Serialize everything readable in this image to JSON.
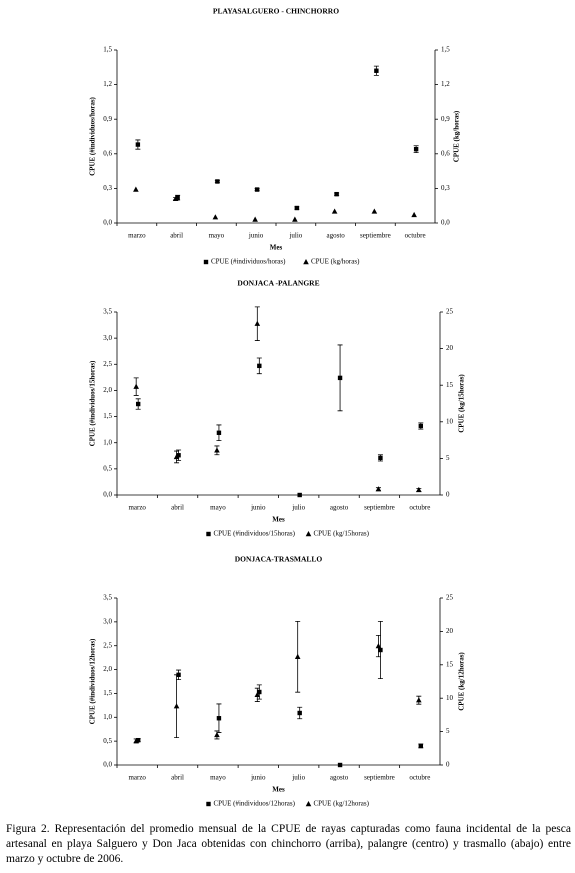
{
  "chart_data": [
    {
      "type": "scatter",
      "title": "PLAYASALGUERO - CHINCHORRO",
      "x_label": "Mes",
      "y_label": "CPUE (#individuos/horas)",
      "y2_label": "CPUE (kg/horas)",
      "categories": [
        "marzo",
        "abril",
        "mayo",
        "junio",
        "julio",
        "agosto",
        "septiembre",
        "octubre"
      ],
      "ylim": [
        0,
        1.5
      ],
      "yticks": [
        {
          "value": 0,
          "label": "0,0"
        },
        {
          "value": 0.3,
          "label": "0,3"
        },
        {
          "value": 0.6,
          "label": "0,6"
        },
        {
          "value": 0.9,
          "label": "0,9"
        },
        {
          "value": 1.2,
          "label": "1,2"
        },
        {
          "value": 1.5,
          "label": "1,5"
        }
      ],
      "y2lim": [
        0,
        1.5
      ],
      "y2ticks": [
        {
          "value": 0,
          "label": "0,0"
        },
        {
          "value": 0.3,
          "label": "0,3"
        },
        {
          "value": 0.6,
          "label": "0,6"
        },
        {
          "value": 0.9,
          "label": "0,9"
        },
        {
          "value": 1.2,
          "label": "1,2"
        },
        {
          "value": 1.5,
          "label": "1,5"
        }
      ],
      "series": [
        {
          "name": "CPUE (#individuos/horas)",
          "color": "#000000",
          "marker": "square",
          "values": [
            0.68,
            0.22,
            0.36,
            0.29,
            0.13,
            0.25,
            1.32,
            0.64
          ],
          "errors": [
            0.04,
            0.02,
            0.01,
            0.01,
            0.01,
            0.01,
            0.04,
            0.03
          ]
        },
        {
          "name": "CPUE (kg/horas)",
          "color": "#000000",
          "marker": "triangle",
          "axis": "y2",
          "values": [
            0.29,
            0.21,
            0.05,
            0.03,
            0.03,
            0.1,
            0.1,
            0.07
          ],
          "errors": [
            null,
            0.01,
            null,
            null,
            null,
            null,
            null,
            null
          ]
        }
      ]
    },
    {
      "type": "scatter",
      "title": "DONJACA -PALANGRE",
      "x_label": "Mes",
      "y_label": "CPUE (#individuos/15horas)",
      "y2_label": "CPUE (kg/15horas)",
      "categories": [
        "marzo",
        "abril",
        "mayo",
        "junio",
        "julio",
        "agosto",
        "septiembre",
        "octubre"
      ],
      "ylim": [
        0,
        3.5
      ],
      "yticks": [
        {
          "value": 0,
          "label": "0,0"
        },
        {
          "value": 0.5,
          "label": "0,5"
        },
        {
          "value": 1,
          "label": "1,0"
        },
        {
          "value": 1.5,
          "label": "1,5"
        },
        {
          "value": 2,
          "label": "2,0"
        },
        {
          "value": 2.5,
          "label": "2,5"
        },
        {
          "value": 3,
          "label": "3,0"
        },
        {
          "value": 3.5,
          "label": "3,5"
        }
      ],
      "y2lim": [
        0,
        25
      ],
      "y2ticks": [
        0,
        5,
        10,
        15,
        20,
        25
      ],
      "series": [
        {
          "name": "CPUE (#individuos/15horas)",
          "color": "#000000",
          "marker": "square",
          "values": [
            1.74,
            0.76,
            1.19,
            2.47,
            0,
            2.24,
            0.71,
            1.32
          ],
          "errors": [
            0.1,
            0.1,
            0.15,
            0.15,
            null,
            0.63,
            0.06,
            0.06
          ]
        },
        {
          "name": "CPUE (kg/15horas)",
          "color": "#000000",
          "marker": "triangle",
          "axis": "y2",
          "values": [
            14.8,
            5.2,
            6.1,
            23.4,
            null,
            null,
            0.8,
            0.7
          ],
          "errors": [
            1.2,
            0.8,
            0.6,
            2.3,
            null,
            null,
            0.2,
            0.2
          ]
        }
      ]
    },
    {
      "type": "scatter",
      "title": "DONJACA-TRASMALLO",
      "x_label": "Mes",
      "y_label": "CPUE (#individuos/12horas)",
      "y2_label": "CPUE (kg/12horas)",
      "categories": [
        "marzo",
        "abril",
        "mayo",
        "junio",
        "julio",
        "agosto",
        "septiembre",
        "octubre"
      ],
      "ylim": [
        0,
        3.5
      ],
      "yticks": [
        {
          "value": 0,
          "label": "0,0"
        },
        {
          "value": 0.5,
          "label": "0,5"
        },
        {
          "value": 1,
          "label": "1,0"
        },
        {
          "value": 1.5,
          "label": "1,5"
        },
        {
          "value": 2,
          "label": "2,0"
        },
        {
          "value": 2.5,
          "label": "2,5"
        },
        {
          "value": 3,
          "label": "3,0"
        },
        {
          "value": 3.5,
          "label": "3,5"
        }
      ],
      "y2lim": [
        0,
        25
      ],
      "y2ticks": [
        0,
        5,
        10,
        15,
        20,
        25
      ],
      "series": [
        {
          "name": "CPUE (#individuos/12horas)",
          "color": "#000000",
          "marker": "square",
          "values": [
            0.52,
            1.89,
            0.98,
            1.53,
            1.09,
            0,
            2.41,
            0.4
          ],
          "errors": [
            0.03,
            0.1,
            0.3,
            0.15,
            0.12,
            null,
            0.6,
            0.04
          ]
        },
        {
          "name": "CPUE (kg/12horas)",
          "color": "#000000",
          "marker": "triangle",
          "axis": "y2",
          "values": [
            3.6,
            8.8,
            4.5,
            10.5,
            16.2,
            null,
            17.8,
            9.7
          ],
          "errors": [
            0.3,
            4.7,
            0.6,
            1,
            5.3,
            null,
            1.6,
            0.6
          ]
        }
      ]
    }
  ],
  "caption": "Figura 2. Representación del promedio mensual de la CPUE de rayas capturadas como fauna incidental de la pesca artesanal en playa Salguero y Don Jaca obtenidas con chinchorro (arriba), palangre (centro) y trasmallo (abajo) entre marzo y octubre de 2006."
}
